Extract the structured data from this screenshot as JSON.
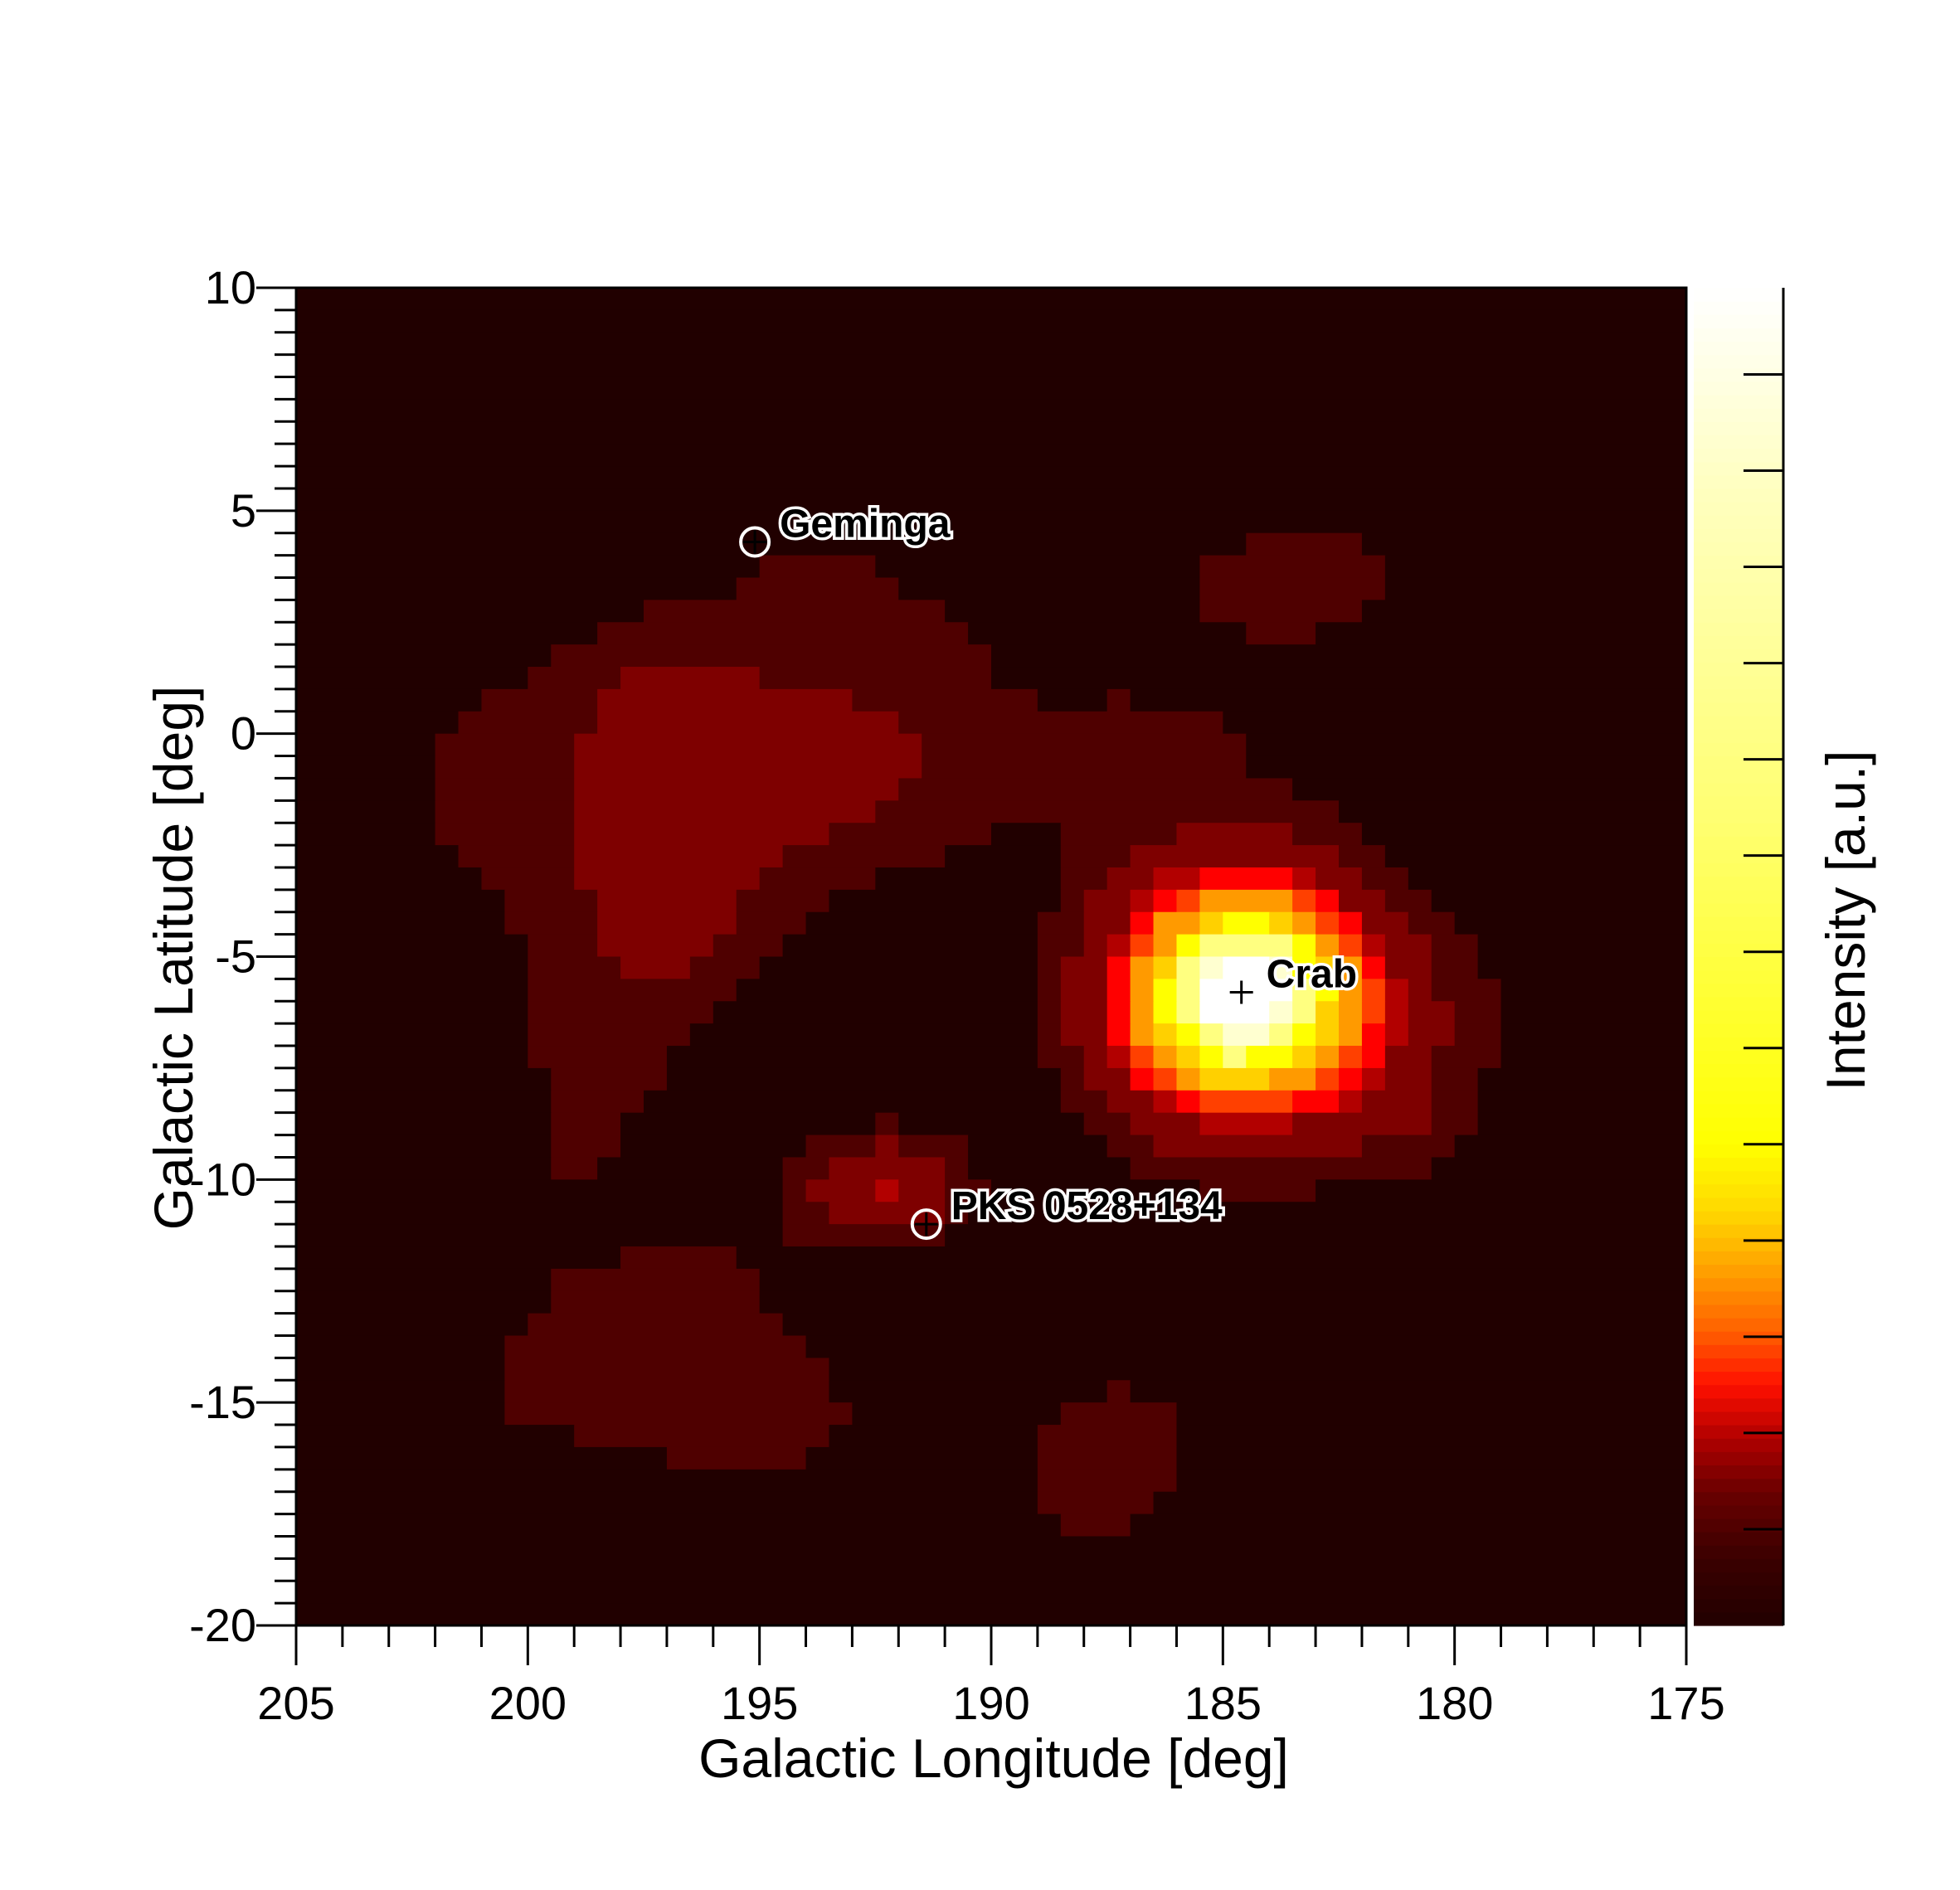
{
  "chart_data": {
    "type": "heatmap",
    "xlabel": "Galactic Longitude [deg]",
    "ylabel": "Galactic Latitude [deg]",
    "colorbar_label": "Intensity [a.u.]",
    "xlim": [
      205,
      175
    ],
    "ylim": [
      -20,
      10
    ],
    "x_ticks": [
      "205",
      "200",
      "195",
      "190",
      "185",
      "180",
      "175"
    ],
    "y_ticks": [
      "10",
      "5",
      "0",
      "-5",
      "-10",
      "-15",
      "-20"
    ],
    "colormap": [
      "#210000",
      "#4f0000",
      "#7e0000",
      "#b20000",
      "#ff0000",
      "#ff4000",
      "#ff9a00",
      "#ffd000",
      "#ffff00",
      "#ffff80",
      "#ffffd0",
      "#ffffff"
    ],
    "sources": [
      {
        "name": "Geminga",
        "l": 195.1,
        "b": 4.3,
        "circle": true
      },
      {
        "name": "Crab",
        "l": 184.6,
        "b": -5.8,
        "circle": false
      },
      {
        "name": "PKS 0528+134",
        "l": 191.4,
        "b": -11.0,
        "circle": true
      }
    ]
  }
}
